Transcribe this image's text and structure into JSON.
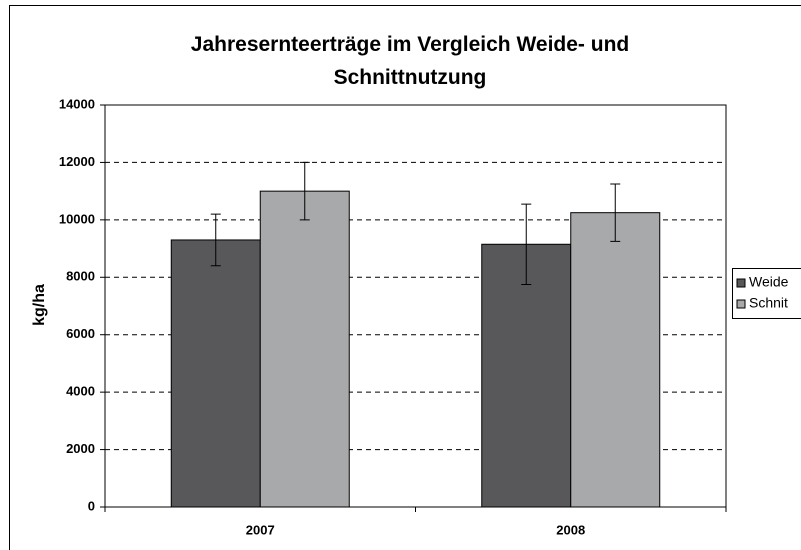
{
  "chart_data": {
    "type": "bar",
    "title": "Jahresernteerträge im Vergleich Weide- und Schnittnutzung",
    "y_label": "kg/ha",
    "categories": [
      "2007",
      "2008"
    ],
    "series": [
      {
        "name": "Weide",
        "color": "#58585a",
        "values": [
          9300,
          9150
        ],
        "errors": [
          900,
          1400
        ]
      },
      {
        "name": "Schnit",
        "color": "#a7a9ab",
        "values": [
          11000,
          10250
        ],
        "errors": [
          1000,
          1000
        ]
      }
    ],
    "ylim": [
      0,
      14000
    ],
    "yticks": [
      0,
      2000,
      4000,
      6000,
      8000,
      10000,
      12000,
      14000
    ],
    "grid": true,
    "legend": "right"
  }
}
